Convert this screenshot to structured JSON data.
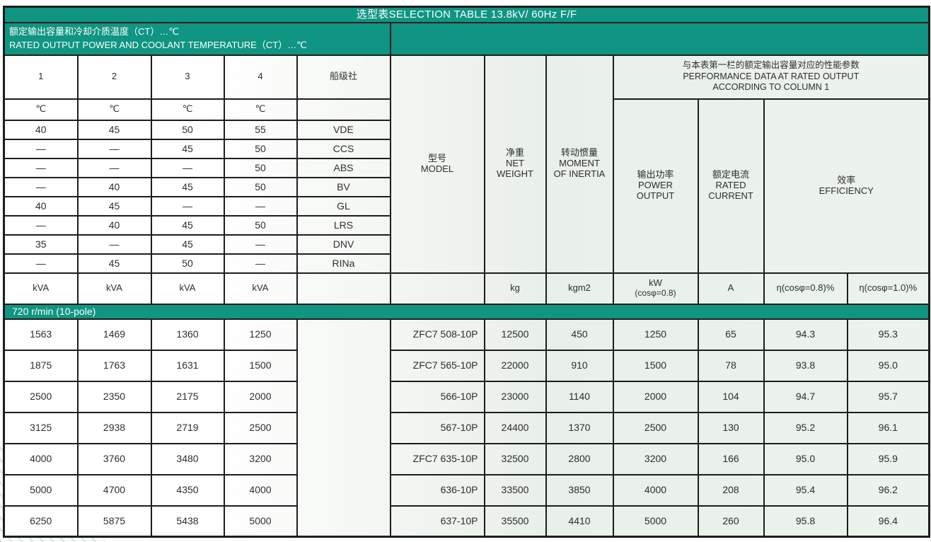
{
  "page": {
    "title_bar": "选型表SELECTION TABLE 13.8kV/ 60Hz  F/F"
  },
  "subheader": {
    "cn": "额定输出容量和冷却介质温度（CT）…℃",
    "en": "RATED OUTPUT POWER AND COOLANT TEMPERATURE（CT）…℃"
  },
  "headers": {
    "col1": "1",
    "col2": "2",
    "col3": "3",
    "col4": "4",
    "society": "船级社",
    "celsius": "℃",
    "model": {
      "cn": "型号",
      "en": "MODEL"
    },
    "net_weight": {
      "cn": "净重",
      "en1": "NET",
      "en2": "WEIGHT"
    },
    "inertia": {
      "cn": "转动惯量",
      "en1": "MOMENT",
      "en2": "OF INERTIA"
    },
    "performance": {
      "cn": "与本表第一栏的额定输出容量对应的性能参数",
      "en1": "PERFORMANCE DATA AT RATED OUTPUT",
      "en2": "ACCORDING TO COLUMN 1"
    },
    "power_output": {
      "cn": "输出功率",
      "en1": "POWER",
      "en2": "OUTPUT"
    },
    "rated_current": {
      "cn": "额定电流",
      "en1": "RATED",
      "en2": "CURRENT"
    },
    "efficiency": {
      "cn": "效率",
      "en": "EFFICIENCY"
    }
  },
  "units": {
    "kva": "kVA",
    "kg": "kg",
    "kgm2": "kgm2",
    "kw_line1": "kW",
    "kw_line2": "(cosφ=0.8)",
    "ampere": "A",
    "eff_pf08": "η(cosφ=0.8)%",
    "eff_pf10": "η(cosφ=1.0)%"
  },
  "section_band": "720 r/min (10-pole)",
  "table": {
    "temperature_rows": [
      {
        "values": [
          "40",
          "45",
          "50",
          "55"
        ],
        "society": "VDE"
      },
      {
        "values": [
          "—",
          "—",
          "45",
          "50"
        ],
        "society": "CCS"
      },
      {
        "values": [
          "—",
          "—",
          "—",
          "50"
        ],
        "society": "ABS"
      },
      {
        "values": [
          "—",
          "40",
          "45",
          "50"
        ],
        "society": "BV"
      },
      {
        "values": [
          "40",
          "45",
          "—",
          "—"
        ],
        "society": "GL"
      },
      {
        "values": [
          "—",
          "40",
          "45",
          "50"
        ],
        "society": "LRS"
      },
      {
        "values": [
          "35",
          "—",
          "45",
          "—"
        ],
        "society": "DNV"
      },
      {
        "values": [
          "—",
          "45",
          "50",
          "—"
        ],
        "society": "RINa"
      }
    ],
    "data_rows": [
      {
        "kva": [
          "1563",
          "1469",
          "1360",
          "1250"
        ],
        "model": "ZFC7 508-10P",
        "net_weight": "12500",
        "inertia": "450",
        "power": "1250",
        "current": "65",
        "eff_pf08": "94.3",
        "eff_pf10": "95.3"
      },
      {
        "kva": [
          "1875",
          "1763",
          "1631",
          "1500"
        ],
        "model": "ZFC7 565-10P",
        "net_weight": "22000",
        "inertia": "910",
        "power": "1500",
        "current": "78",
        "eff_pf08": "93.8",
        "eff_pf10": "95.0"
      },
      {
        "kva": [
          "2500",
          "2350",
          "2175",
          "2000"
        ],
        "model": "566-10P",
        "net_weight": "23000",
        "inertia": "1140",
        "power": "2000",
        "current": "104",
        "eff_pf08": "94.7",
        "eff_pf10": "95.7"
      },
      {
        "kva": [
          "3125",
          "2938",
          "2719",
          "2500"
        ],
        "model": "567-10P",
        "net_weight": "24400",
        "inertia": "1370",
        "power": "2500",
        "current": "130",
        "eff_pf08": "95.2",
        "eff_pf10": "96.1"
      },
      {
        "kva": [
          "4000",
          "3760",
          "3480",
          "3200"
        ],
        "model": "ZFC7 635-10P",
        "net_weight": "32500",
        "inertia": "2800",
        "power": "3200",
        "current": "166",
        "eff_pf08": "95.0",
        "eff_pf10": "95.9"
      },
      {
        "kva": [
          "5000",
          "4700",
          "4350",
          "4000"
        ],
        "model": "636-10P",
        "net_weight": "33500",
        "inertia": "3850",
        "power": "4000",
        "current": "208",
        "eff_pf08": "95.4",
        "eff_pf10": "96.2"
      },
      {
        "kva": [
          "6250",
          "5875",
          "5438",
          "5000"
        ],
        "model": "637-10P",
        "net_weight": "35500",
        "inertia": "4410",
        "power": "5000",
        "current": "260",
        "eff_pf08": "95.8",
        "eff_pf10": "96.4"
      }
    ]
  },
  "colors": {
    "teal": "#0f9582",
    "border": "#1d1d1d",
    "text": "#2e2e2e",
    "right_tint": "#eaf1ea"
  }
}
